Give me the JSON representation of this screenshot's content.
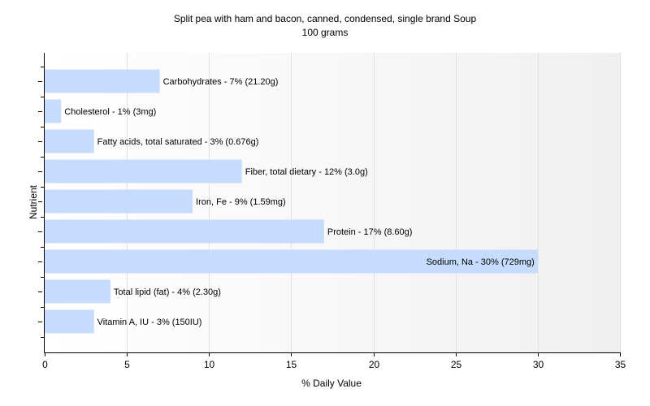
{
  "chart_data": {
    "type": "bar",
    "orientation": "horizontal",
    "title": "Split pea with ham and bacon, canned, condensed, single brand Soup",
    "subtitle": "100 grams",
    "xlabel": "% Daily Value",
    "ylabel": "Nutrient",
    "xlim": [
      0,
      35
    ],
    "xticks": [
      0,
      5,
      10,
      15,
      20,
      25,
      30,
      35
    ],
    "grid": "vertical",
    "legend": "none",
    "bar_color": "#c6dcfc",
    "categories": [
      "Carbohydrates",
      "Cholesterol",
      "Fatty acids, total saturated",
      "Fiber, total dietary",
      "Iron, Fe",
      "Protein",
      "Sodium, Na",
      "Total lipid (fat)",
      "Vitamin A, IU"
    ],
    "values": [
      7,
      1,
      3,
      12,
      9,
      17,
      30,
      4,
      3
    ],
    "labels": [
      "Carbohydrates - 7% (21.20g)",
      "Cholesterol - 1% (3mg)",
      "Fatty acids, total saturated - 3% (0.676g)",
      "Fiber, total dietary - 12% (3.0g)",
      "Iron, Fe - 9% (1.59mg)",
      "Protein - 17% (8.60g)",
      "Sodium, Na - 30% (729mg)",
      "Total lipid (fat) - 4% (2.30g)",
      "Vitamin A, IU - 3% (150IU)"
    ]
  }
}
